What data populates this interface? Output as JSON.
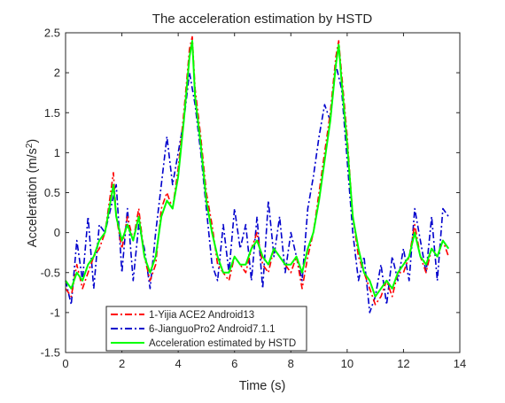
{
  "chart_data": {
    "type": "line",
    "title": "The acceleration estimation by HSTD",
    "xlabel": "Time (s)",
    "ylabel_main": "Acceleration (m/s",
    "ylabel_sup": "2",
    "ylabel_close": ")",
    "xlim": [
      0,
      14
    ],
    "ylim": [
      -1.5,
      2.5
    ],
    "xticks": [
      0,
      2,
      4,
      6,
      8,
      10,
      12,
      14
    ],
    "yticks": [
      -1.5,
      -1,
      -0.5,
      0,
      0.5,
      1,
      1.5,
      2,
      2.5
    ],
    "xtick_labels": [
      "0",
      "2",
      "4",
      "6",
      "8",
      "10",
      "12",
      "14"
    ],
    "ytick_labels": [
      "-1.5",
      "-1",
      "-0.5",
      "0",
      "0.5",
      "1",
      "1.5",
      "2",
      "2.5"
    ],
    "grid": false,
    "legend_position": "bottom-left",
    "series": [
      {
        "name": "1-Yijia ACE2 Android13",
        "color": "#ff0000",
        "style": "dashdot",
        "x": [
          0,
          0.2,
          0.4,
          0.6,
          0.8,
          1.0,
          1.2,
          1.4,
          1.6,
          1.7,
          1.8,
          2.0,
          2.2,
          2.4,
          2.6,
          2.8,
          3.0,
          3.2,
          3.4,
          3.6,
          3.8,
          4.0,
          4.2,
          4.4,
          4.5,
          4.6,
          4.8,
          5.0,
          5.2,
          5.4,
          5.6,
          5.8,
          6.0,
          6.2,
          6.4,
          6.6,
          6.8,
          7.0,
          7.2,
          7.4,
          7.6,
          7.8,
          8.0,
          8.2,
          8.4,
          8.6,
          8.8,
          9.0,
          9.2,
          9.4,
          9.6,
          9.7,
          9.8,
          10.0,
          10.2,
          10.4,
          10.6,
          10.8,
          11.0,
          11.2,
          11.4,
          11.6,
          11.8,
          12.0,
          12.2,
          12.4,
          12.6,
          12.8,
          13.0,
          13.2,
          13.4,
          13.6
        ],
        "y": [
          -0.7,
          -0.8,
          -0.4,
          -0.7,
          -0.5,
          -0.3,
          -0.2,
          0.0,
          0.5,
          0.75,
          0.2,
          -0.2,
          0.2,
          -0.1,
          0.3,
          -0.3,
          -0.6,
          -0.4,
          0.3,
          0.5,
          0.3,
          0.8,
          1.5,
          2.3,
          2.45,
          1.8,
          1.2,
          0.5,
          0.1,
          -0.4,
          -0.5,
          -0.6,
          -0.3,
          -0.4,
          -0.5,
          -0.2,
          0.0,
          -0.4,
          -0.5,
          -0.2,
          -0.3,
          -0.4,
          -0.5,
          -0.3,
          -0.7,
          -0.3,
          0.0,
          0.5,
          1.0,
          1.5,
          2.2,
          2.4,
          2.0,
          1.2,
          0.2,
          -0.3,
          -0.5,
          -0.7,
          -0.9,
          -0.8,
          -0.6,
          -0.8,
          -0.5,
          -0.5,
          -0.3,
          0.1,
          -0.3,
          -0.5,
          -0.2,
          -0.3,
          -0.1,
          -0.3
        ]
      },
      {
        "name": "6-JianguoPro2 Android7.1.1",
        "color": "#0000cc",
        "style": "dashdot",
        "x": [
          0,
          0.2,
          0.4,
          0.6,
          0.8,
          1.0,
          1.2,
          1.4,
          1.6,
          1.8,
          2.0,
          2.2,
          2.4,
          2.6,
          2.8,
          3.0,
          3.2,
          3.4,
          3.6,
          3.8,
          4.0,
          4.2,
          4.4,
          4.6,
          4.8,
          5.0,
          5.2,
          5.4,
          5.6,
          5.8,
          6.0,
          6.2,
          6.4,
          6.6,
          6.8,
          7.0,
          7.2,
          7.4,
          7.6,
          7.8,
          8.0,
          8.2,
          8.4,
          8.6,
          8.8,
          9.0,
          9.2,
          9.4,
          9.6,
          9.8,
          10.0,
          10.2,
          10.4,
          10.6,
          10.8,
          11.0,
          11.2,
          11.4,
          11.6,
          11.8,
          12.0,
          12.2,
          12.4,
          12.6,
          12.8,
          13.0,
          13.2,
          13.4,
          13.6
        ],
        "y": [
          -0.6,
          -0.9,
          -0.1,
          -0.6,
          0.2,
          -0.7,
          0.1,
          0.0,
          0.3,
          0.6,
          -0.5,
          0.3,
          -0.6,
          0.1,
          -0.2,
          -0.7,
          0.0,
          0.6,
          1.2,
          0.6,
          1.0,
          1.4,
          2.0,
          1.6,
          1.0,
          0.3,
          -0.4,
          -0.6,
          0.1,
          -0.5,
          0.3,
          -0.2,
          0.1,
          -0.6,
          0.2,
          -0.7,
          0.4,
          -0.3,
          0.2,
          -0.5,
          0.0,
          -0.3,
          -0.6,
          0.3,
          0.7,
          1.2,
          1.6,
          1.4,
          2.1,
          1.8,
          0.9,
          0.0,
          -0.6,
          -0.3,
          -1.0,
          -0.8,
          -0.4,
          -0.9,
          -0.3,
          -0.6,
          -0.2,
          -0.6,
          0.3,
          -0.1,
          -0.5,
          0.2,
          -0.6,
          0.3,
          0.2
        ]
      },
      {
        "name": "Acceleration estimated by HSTD",
        "color": "#00ff00",
        "style": "solid",
        "x": [
          0,
          0.2,
          0.4,
          0.6,
          0.8,
          1.0,
          1.2,
          1.4,
          1.6,
          1.7,
          1.8,
          2.0,
          2.2,
          2.4,
          2.6,
          2.8,
          3.0,
          3.2,
          3.4,
          3.6,
          3.8,
          4.0,
          4.2,
          4.4,
          4.5,
          4.6,
          4.8,
          5.0,
          5.2,
          5.4,
          5.6,
          5.8,
          6.0,
          6.2,
          6.4,
          6.6,
          6.8,
          7.0,
          7.2,
          7.4,
          7.6,
          7.8,
          8.0,
          8.2,
          8.4,
          8.6,
          8.8,
          9.0,
          9.2,
          9.4,
          9.6,
          9.7,
          9.8,
          10.0,
          10.2,
          10.4,
          10.6,
          10.8,
          11.0,
          11.2,
          11.4,
          11.6,
          11.8,
          12.0,
          12.2,
          12.4,
          12.6,
          12.8,
          13.0,
          13.2,
          13.4,
          13.6
        ],
        "y": [
          -0.6,
          -0.7,
          -0.5,
          -0.6,
          -0.4,
          -0.3,
          -0.1,
          0.0,
          0.4,
          0.6,
          0.2,
          -0.1,
          0.1,
          -0.1,
          0.2,
          -0.3,
          -0.5,
          -0.3,
          0.2,
          0.4,
          0.3,
          0.7,
          1.4,
          2.2,
          2.4,
          1.7,
          1.1,
          0.4,
          0.0,
          -0.3,
          -0.5,
          -0.5,
          -0.3,
          -0.4,
          -0.4,
          -0.2,
          -0.1,
          -0.3,
          -0.4,
          -0.2,
          -0.3,
          -0.4,
          -0.4,
          -0.3,
          -0.5,
          -0.2,
          0.0,
          0.4,
          0.9,
          1.4,
          2.1,
          2.35,
          1.9,
          1.1,
          0.2,
          -0.2,
          -0.5,
          -0.6,
          -0.8,
          -0.7,
          -0.6,
          -0.7,
          -0.5,
          -0.4,
          -0.3,
          0.0,
          -0.3,
          -0.4,
          -0.2,
          -0.3,
          -0.1,
          -0.2
        ]
      }
    ]
  }
}
